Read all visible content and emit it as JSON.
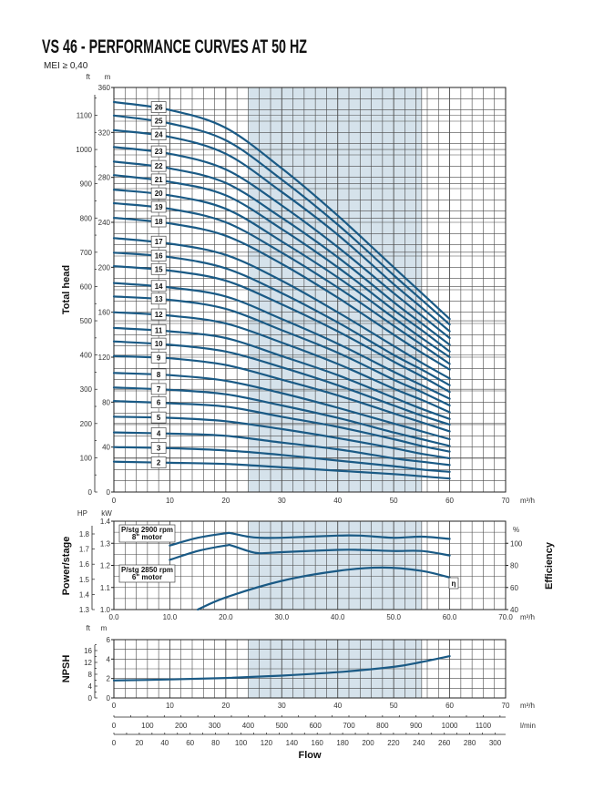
{
  "header": {
    "title": "VS 46 - PERFORMANCE CURVES AT 50 HZ",
    "subtitle": "MEI ≥ 0,40"
  },
  "colors": {
    "curve": "#1a5a85",
    "shade": "#d5e2eb",
    "grid": "#4a4a4a"
  },
  "chart_data": [
    {
      "type": "line",
      "ylabel": "Total head",
      "x_unit": "m³/h",
      "y_unit": "m",
      "y2_unit": "ft",
      "xlim": [
        0,
        70
      ],
      "ylim": [
        0,
        360
      ],
      "x_ticks": [
        0,
        10,
        20,
        30,
        40,
        50,
        60,
        70
      ],
      "y_ticks": [
        0,
        40,
        80,
        120,
        160,
        200,
        240,
        280,
        320,
        360
      ],
      "y2_ticks": [
        0,
        100,
        200,
        300,
        400,
        500,
        600,
        700,
        800,
        900,
        1000,
        1100
      ],
      "grid": true,
      "shaded_range": [
        24,
        55
      ],
      "x": [
        0,
        10,
        20,
        30,
        40,
        50,
        55,
        60
      ],
      "series": [
        {
          "name": "26",
          "values": [
            347,
            340,
            324,
            288,
            246,
            200,
            177,
            154
          ]
        },
        {
          "name": "25",
          "values": [
            335,
            328,
            313,
            278,
            238,
            193,
            171,
            149
          ]
        },
        {
          "name": "24",
          "values": [
            322,
            316,
            301,
            267,
            229,
            185,
            164,
            143
          ]
        },
        {
          "name": "23",
          "values": [
            307,
            301,
            287,
            255,
            218,
            177,
            157,
            137
          ]
        },
        {
          "name": "22",
          "values": [
            294,
            288,
            275,
            244,
            209,
            169,
            150,
            131
          ]
        },
        {
          "name": "21",
          "values": [
            282,
            276,
            264,
            234,
            200,
            162,
            144,
            125
          ]
        },
        {
          "name": "20",
          "values": [
            269,
            264,
            252,
            223,
            191,
            155,
            137,
            120
          ]
        },
        {
          "name": "19",
          "values": [
            257,
            252,
            240,
            213,
            182,
            148,
            131,
            114
          ]
        },
        {
          "name": "18",
          "values": [
            244,
            239,
            228,
            203,
            173,
            140,
            124,
            109
          ]
        },
        {
          "name": "17",
          "values": [
            226,
            221,
            211,
            188,
            160,
            130,
            115,
            101
          ]
        },
        {
          "name": "16",
          "values": [
            213,
            209,
            199,
            177,
            151,
            122,
            109,
            95
          ]
        },
        {
          "name": "15",
          "values": [
            201,
            197,
            188,
            167,
            143,
            116,
            103,
            89
          ]
        },
        {
          "name": "14",
          "values": [
            186,
            182,
            174,
            154,
            132,
            107,
            95,
            83
          ]
        },
        {
          "name": "13",
          "values": [
            174,
            171,
            163,
            144,
            124,
            100,
            89,
            77
          ]
        },
        {
          "name": "12",
          "values": [
            160,
            157,
            150,
            133,
            114,
            92,
            82,
            71
          ]
        },
        {
          "name": "11",
          "values": [
            146,
            143,
            137,
            121,
            104,
            84,
            74,
            65
          ]
        },
        {
          "name": "10",
          "values": [
            134,
            131,
            125,
            111,
            95,
            77,
            68,
            60
          ]
        },
        {
          "name": "9",
          "values": [
            121,
            119,
            113,
            100,
            86,
            70,
            62,
            54
          ]
        },
        {
          "name": "8",
          "values": [
            106,
            104,
            99,
            88,
            75,
            61,
            54,
            47
          ]
        },
        {
          "name": "7",
          "values": [
            93,
            91,
            87,
            77,
            66,
            53,
            47,
            41
          ]
        },
        {
          "name": "6",
          "values": [
            81,
            79,
            76,
            67,
            58,
            47,
            41,
            36
          ]
        },
        {
          "name": "5",
          "values": [
            67,
            66,
            63,
            56,
            48,
            39,
            34,
            30
          ]
        },
        {
          "name": "4",
          "values": [
            53,
            52,
            50,
            44,
            38,
            30,
            27,
            24
          ]
        },
        {
          "name": "3",
          "values": [
            40,
            39,
            37,
            33,
            28,
            23,
            20,
            18
          ]
        },
        {
          "name": "2",
          "values": [
            27,
            26,
            25,
            22,
            19,
            16,
            14,
            12
          ]
        }
      ]
    },
    {
      "type": "line",
      "ylabel": "Power/stage",
      "y_right_label": "Efficiency",
      "x_unit": "m³/h",
      "y_unit": "kW",
      "y_hp_unit": "HP",
      "y_right_unit": "%",
      "xlim": [
        0,
        70
      ],
      "ylim": [
        1.0,
        1.4
      ],
      "y_right_lim": [
        40,
        120
      ],
      "x_ticks": [
        0,
        10,
        20,
        30,
        40,
        50,
        60,
        70
      ],
      "y_ticks": [
        1.0,
        1.1,
        1.2,
        1.3,
        1.4
      ],
      "hp_ticks": [
        1.3,
        1.4,
        1.5,
        1.6,
        1.7,
        1.8
      ],
      "eff_ticks": [
        40,
        60,
        80,
        100
      ],
      "grid": true,
      "shaded_range": [
        24,
        55
      ],
      "series": [
        {
          "name": "P/stg 2900 rpm 8\" motor",
          "label_lines": [
            "P/stg 2900 rpm",
            "8\" motor"
          ],
          "axis": "kW",
          "x": [
            10,
            15,
            20,
            21,
            24,
            26,
            30,
            40,
            44,
            50,
            55,
            60
          ],
          "values": [
            1.29,
            1.325,
            1.345,
            1.345,
            1.33,
            1.325,
            1.325,
            1.335,
            1.335,
            1.325,
            1.33,
            1.32
          ]
        },
        {
          "name": "P/stg 2850 rpm 6\" motor",
          "label_lines": [
            "P/stg 2850 rpm",
            "6\" motor"
          ],
          "axis": "kW",
          "x": [
            10,
            15,
            20,
            21,
            24,
            26,
            30,
            40,
            44,
            50,
            55,
            60
          ],
          "values": [
            1.225,
            1.265,
            1.29,
            1.29,
            1.265,
            1.255,
            1.26,
            1.27,
            1.27,
            1.265,
            1.265,
            1.245
          ]
        },
        {
          "name": "η",
          "label_lines": [
            "η"
          ],
          "axis": "%",
          "x": [
            15,
            20,
            30,
            40,
            48,
            55,
            60
          ],
          "values": [
            40,
            51,
            66,
            75,
            78,
            75,
            69
          ]
        }
      ]
    },
    {
      "type": "line",
      "ylabel": "NPSH",
      "x_unit": "m³/h",
      "y_unit": "m",
      "y2_unit": "ft",
      "xlim": [
        0,
        70
      ],
      "ylim": [
        0,
        6
      ],
      "x_ticks": [
        0,
        10,
        20,
        30,
        40,
        50,
        60,
        70
      ],
      "y_ticks": [
        0,
        2,
        4,
        6
      ],
      "y2_ticks": [
        0,
        4,
        8,
        12,
        16
      ],
      "grid": true,
      "shaded_range": [
        24,
        55
      ],
      "x": [
        0,
        10,
        20,
        30,
        40,
        50,
        55,
        60
      ],
      "series": [
        {
          "values": [
            1.8,
            1.9,
            2.05,
            2.3,
            2.65,
            3.2,
            3.7,
            4.3
          ]
        }
      ]
    }
  ],
  "flow_axes": {
    "title": "Flow",
    "lpm": {
      "unit": "l/min",
      "ticks": [
        0,
        100,
        200,
        300,
        400,
        500,
        600,
        700,
        800,
        900,
        1000,
        1100
      ]
    },
    "gpm": {
      "ticks": [
        0,
        20,
        40,
        60,
        80,
        100,
        120,
        140,
        160,
        180,
        200,
        220,
        240,
        260,
        280,
        300
      ]
    }
  }
}
